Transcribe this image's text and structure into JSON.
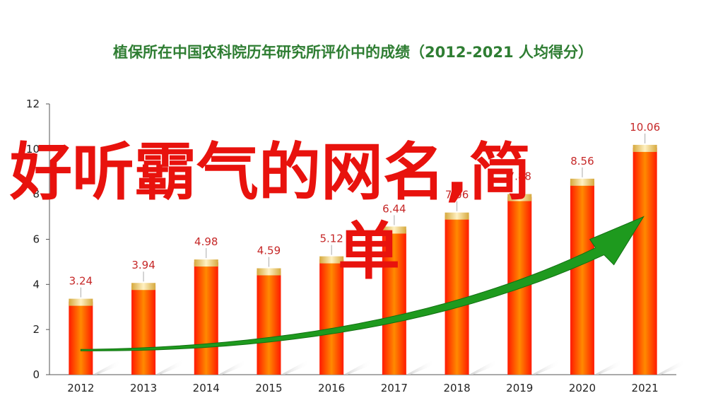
{
  "chart_data": {
    "type": "bar",
    "title": "植保所在中国农科院历年研究所评价中的成绩（2012-2021  人均得分）",
    "categories": [
      "2012",
      "2013",
      "2014",
      "2015",
      "2016",
      "2017",
      "2018",
      "2019",
      "2020",
      "2021"
    ],
    "values": [
      3.24,
      3.94,
      4.98,
      4.59,
      5.12,
      6.44,
      7.06,
      7.88,
      8.56,
      10.06
    ],
    "value_labels": [
      "3.24",
      "3.94",
      "4.98",
      "4.59",
      "5.12",
      "6.44",
      "7.06",
      "7.88",
      "8.56",
      "10.06"
    ],
    "ylim": [
      0,
      12
    ],
    "yticks": [
      0,
      2,
      4,
      6,
      8,
      10,
      12
    ],
    "xlabel": "",
    "ylabel": "",
    "grid": false,
    "legend": "none",
    "trend_arrow": true,
    "colors": {
      "bar_top": "#ff2a00",
      "bar_mid": "#ff7a00",
      "bar_cap": "#f6d27a",
      "arrow": "#1e9a1e",
      "title": "#2e7d32",
      "label": "#c62828"
    }
  },
  "overlay": {
    "line1": "好听霸气的网名,简",
    "line2": "单"
  }
}
